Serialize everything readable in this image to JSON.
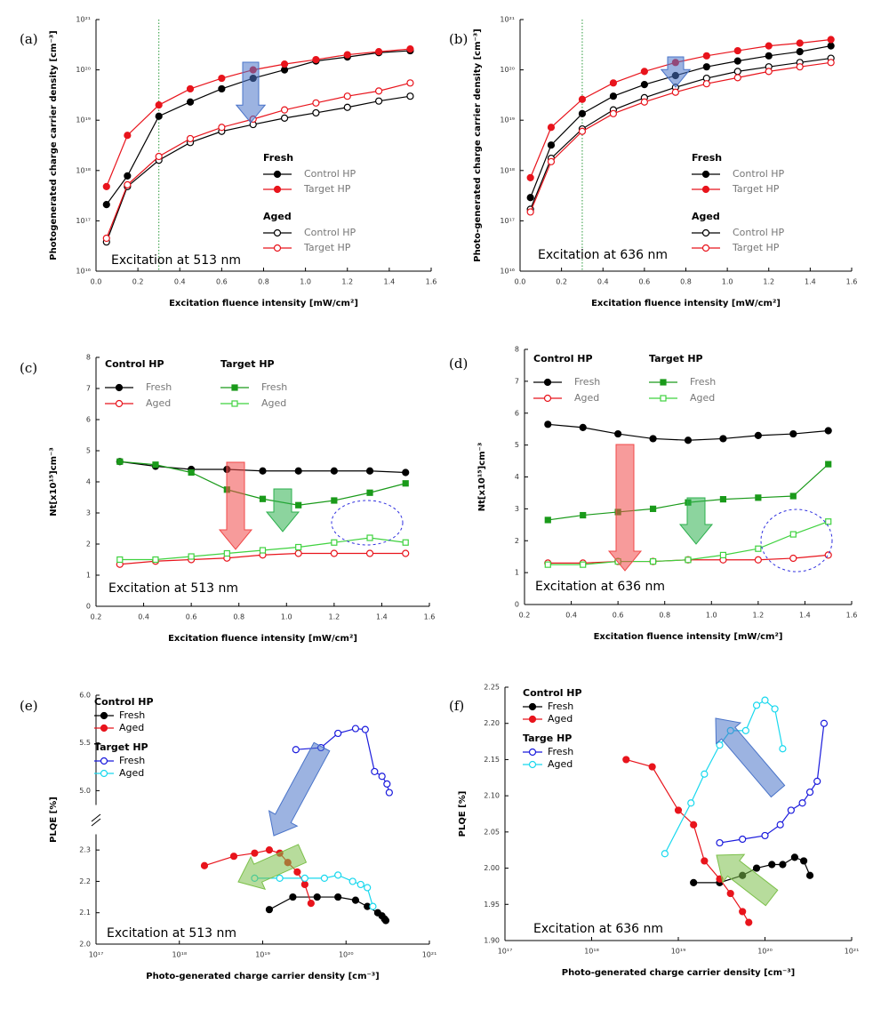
{
  "chart_data": [
    {
      "type": "line",
      "panel_label": "(a)",
      "xlabel": "Excitation fluence intensity [mW/cm²]",
      "ylabel": "Photogenerated charge carrier density [cm⁻³]",
      "annotation": "Excitation at 513 nm",
      "ylog": true,
      "xlim": [
        0,
        1.6
      ],
      "xticks": [
        {
          "value": 0,
          "label": "0.0"
        },
        0.2,
        0.4,
        0.6,
        0.8,
        {
          "value": 1,
          "label": "1.0"
        },
        1.2,
        1.4,
        1.6
      ],
      "ylim": [
        1e+16,
        1e+21
      ],
      "yticks": [
        {
          "value": 1e+16,
          "label": "10¹⁶"
        },
        {
          "value": 1e+17,
          "label": "10¹⁷"
        },
        {
          "value": 1e+18,
          "label": "10¹⁸"
        },
        {
          "value": 1e+19,
          "label": "10¹⁹"
        },
        {
          "value": 1e+20,
          "label": "10²⁰"
        },
        {
          "value": 1e+21,
          "label": "10²¹"
        }
      ],
      "vline": 0.3,
      "x": [
        0.05,
        0.15,
        0.3,
        0.45,
        0.6,
        0.75,
        0.9,
        1.05,
        1.2,
        1.35,
        1.5
      ],
      "series": [
        {
          "group": "Fresh",
          "name": "Control HP",
          "color": "#000000",
          "marker": "circle",
          "filled": true,
          "values": [
            2.1e+17,
            7.8e+17,
            1.2e+19,
            2.3e+19,
            4.2e+19,
            6.8e+19,
            1e+20,
            1.5e+20,
            1.8e+20,
            2.2e+20,
            2.4e+20
          ]
        },
        {
          "group": "Fresh",
          "name": "Target HP",
          "color": "#e8141c",
          "marker": "circle",
          "filled": true,
          "values": [
            4.8e+17,
            5e+18,
            2e+19,
            4.2e+19,
            6.8e+19,
            1e+20,
            1.3e+20,
            1.6e+20,
            2e+20,
            2.3e+20,
            2.6e+20
          ]
        },
        {
          "group": "Aged",
          "name": "Control HP",
          "color": "#000000",
          "marker": "circle",
          "filled": false,
          "values": [
            3.8e+16,
            4.8e+17,
            1.6e+18,
            3.6e+18,
            6e+18,
            8.2e+18,
            1.1e+19,
            1.4e+19,
            1.8e+19,
            2.4e+19,
            3e+19
          ]
        },
        {
          "group": "Aged",
          "name": "Target HP",
          "color": "#e8141c",
          "marker": "circle",
          "filled": false,
          "values": [
            4.5e+16,
            5.2e+17,
            1.9e+18,
            4.3e+18,
            7.2e+18,
            1.05e+19,
            1.6e+19,
            2.2e+19,
            3e+19,
            3.8e+19,
            5.5e+19
          ]
        }
      ]
    },
    {
      "type": "line",
      "panel_label": "(b)",
      "xlabel": "Excitation fluence intensity [mW/cm²]",
      "ylabel": "Photo-generated charge carrier density [cm⁻³]",
      "annotation": "Excitation at 636 nm",
      "ylog": true,
      "xlim": [
        0,
        1.6
      ],
      "xticks": [
        {
          "value": 0,
          "label": "0.0"
        },
        0.2,
        0.4,
        0.6,
        0.8,
        {
          "value": 1,
          "label": "1.0"
        },
        1.2,
        1.4,
        1.6
      ],
      "ylim": [
        1e+16,
        1e+21
      ],
      "yticks": [
        {
          "value": 1e+16,
          "label": "10¹⁶"
        },
        {
          "value": 1e+17,
          "label": "10¹⁷"
        },
        {
          "value": 1e+18,
          "label": "10¹⁸"
        },
        {
          "value": 1e+19,
          "label": "10¹⁹"
        },
        {
          "value": 1e+20,
          "label": "10²⁰"
        },
        {
          "value": 1e+21,
          "label": "10²¹"
        }
      ],
      "vline": 0.3,
      "x": [
        0.05,
        0.15,
        0.3,
        0.45,
        0.6,
        0.75,
        0.9,
        1.05,
        1.2,
        1.35,
        1.5
      ],
      "series": [
        {
          "group": "Fresh",
          "name": "Control HP",
          "color": "#000000",
          "marker": "circle",
          "filled": true,
          "values": [
            2.9e+17,
            3.2e+18,
            1.35e+19,
            3e+19,
            5.1e+19,
            7.7e+19,
            1.15e+20,
            1.5e+20,
            1.9e+20,
            2.3e+20,
            3e+20
          ]
        },
        {
          "group": "Fresh",
          "name": "Target HP",
          "color": "#e8141c",
          "marker": "circle",
          "filled": true,
          "values": [
            7.2e+17,
            7.2e+18,
            2.6e+19,
            5.5e+19,
            9.3e+19,
            1.4e+20,
            1.9e+20,
            2.4e+20,
            3e+20,
            3.4e+20,
            4e+20
          ]
        },
        {
          "group": "Aged",
          "name": "Control HP",
          "color": "#000000",
          "marker": "circle",
          "filled": false,
          "values": [
            1.7e+17,
            1.75e+18,
            6.7e+18,
            1.6e+19,
            2.8e+19,
            4.5e+19,
            6.8e+19,
            9.3e+19,
            1.15e+20,
            1.4e+20,
            1.7e+20
          ]
        },
        {
          "group": "Aged",
          "name": "Target HP",
          "color": "#e8141c",
          "marker": "circle",
          "filled": false,
          "values": [
            1.5e+17,
            1.5e+18,
            6e+18,
            1.35e+19,
            2.3e+19,
            3.6e+19,
            5.3e+19,
            7e+19,
            9.3e+19,
            1.15e+20,
            1.4e+20
          ]
        }
      ]
    },
    {
      "type": "line",
      "panel_label": "(c)",
      "xlabel": "Excitation fluence intensity [mW/cm²]",
      "ylabel": "Nt[x10¹⁵]cm⁻³",
      "annotation": "Excitation at 513 nm",
      "xlim": [
        0.2,
        1.6
      ],
      "xticks": [
        0.2,
        0.4,
        0.6,
        0.8,
        {
          "value": 1,
          "label": "1.0"
        },
        1.2,
        1.4,
        1.6
      ],
      "ylim": [
        0,
        8
      ],
      "yticks": [
        0,
        1,
        2,
        3,
        4,
        5,
        6,
        7,
        8
      ],
      "x": [
        0.3,
        0.45,
        0.6,
        0.75,
        0.9,
        1.05,
        1.2,
        1.35,
        1.5
      ],
      "series": [
        {
          "group": "Control HP",
          "name": "Fresh",
          "color": "#000000",
          "marker": "circle",
          "filled": true,
          "values": [
            4.65,
            4.5,
            4.4,
            4.4,
            4.35,
            4.35,
            4.35,
            4.35,
            4.3
          ]
        },
        {
          "group": "Control HP",
          "name": "Aged",
          "color": "#e8141c",
          "marker": "circle",
          "filled": false,
          "values": [
            1.35,
            1.45,
            1.5,
            1.55,
            1.65,
            1.7,
            1.7,
            1.7,
            1.7
          ]
        },
        {
          "group": "Target HP",
          "name": "Fresh",
          "color": "#1a9a1a",
          "marker": "square",
          "filled": true,
          "values": [
            4.65,
            4.55,
            4.3,
            3.75,
            3.45,
            3.25,
            3.4,
            3.65,
            3.95
          ]
        },
        {
          "group": "Target HP",
          "name": "Aged",
          "color": "#3fd23f",
          "marker": "square",
          "filled": false,
          "values": [
            1.5,
            1.5,
            1.6,
            1.7,
            1.8,
            1.9,
            2.05,
            2.2,
            2.05
          ]
        }
      ]
    },
    {
      "type": "line",
      "panel_label": "(d)",
      "xlabel": "Excitation fluence intensity [mW/cm²]",
      "ylabel": "Nt[x10¹⁵]cm⁻³",
      "annotation": "Excitation at 636 nm",
      "xlim": [
        0.2,
        1.6
      ],
      "xticks": [
        0.2,
        0.4,
        0.6,
        0.8,
        {
          "value": 1,
          "label": "1.0"
        },
        1.2,
        1.4,
        1.6
      ],
      "ylim": [
        0,
        8
      ],
      "yticks": [
        0,
        1,
        2,
        3,
        4,
        5,
        6,
        7,
        8
      ],
      "x": [
        0.3,
        0.45,
        0.6,
        0.75,
        0.9,
        1.05,
        1.2,
        1.35,
        1.5
      ],
      "series": [
        {
          "group": "Control HP",
          "name": "Fresh",
          "color": "#000000",
          "marker": "circle",
          "filled": true,
          "values": [
            5.65,
            5.55,
            5.35,
            5.2,
            5.15,
            5.2,
            5.3,
            5.35,
            5.45
          ]
        },
        {
          "group": "Control HP",
          "name": "Aged",
          "color": "#e8141c",
          "marker": "circle",
          "filled": false,
          "values": [
            1.3,
            1.3,
            1.35,
            1.35,
            1.4,
            1.4,
            1.4,
            1.45,
            1.55
          ]
        },
        {
          "group": "Target HP",
          "name": "Fresh",
          "color": "#1a9a1a",
          "marker": "square",
          "filled": true,
          "values": [
            2.65,
            2.8,
            2.9,
            3.0,
            3.2,
            3.3,
            3.35,
            3.4,
            4.4
          ]
        },
        {
          "group": "Target HP",
          "name": "Aged",
          "color": "#3fd23f",
          "marker": "square",
          "filled": false,
          "values": [
            1.25,
            1.25,
            1.35,
            1.35,
            1.4,
            1.55,
            1.75,
            2.2,
            2.6
          ]
        }
      ]
    },
    {
      "type": "scatter",
      "panel_label": "(e)",
      "xlabel": "Photo-generated charge carrier density [cm⁻³]",
      "ylabel": "PLQE [%]",
      "annotation": "Excitation at 513 nm",
      "xlog": true,
      "xlim": [
        1e+17,
        1e+21
      ],
      "xticks": [
        {
          "value": 1e+17,
          "label": "10¹⁷"
        },
        {
          "value": 1e+18,
          "label": "10¹⁸"
        },
        {
          "value": 1e+19,
          "label": "10¹⁹"
        },
        {
          "value": 1e+20,
          "label": "10²⁰"
        },
        {
          "value": 1e+21,
          "label": "10²¹"
        }
      ],
      "ylim": [
        2.0,
        6.0
      ],
      "y_break": [
        2.35,
        4.85
      ],
      "yticks": [
        {
          "value": 2,
          "label": "2.0"
        },
        2.1,
        2.2,
        2.3,
        {
          "value": 5,
          "label": "5.0"
        },
        5.5,
        {
          "value": 6,
          "label": "6.0"
        }
      ],
      "series": [
        {
          "group": "Control HP",
          "name": "Fresh",
          "color": "#000000",
          "marker": "circle",
          "filled": true,
          "x": [
            1.2e+19,
            2.3e+19,
            4.5e+19,
            8e+19,
            1.3e+20,
            1.8e+20,
            2.4e+20,
            2.7e+20,
            2.9e+20,
            3e+20
          ],
          "values": [
            2.11,
            2.15,
            2.15,
            2.15,
            2.14,
            2.12,
            2.1,
            2.09,
            2.08,
            2.075
          ]
        },
        {
          "group": "Control HP",
          "name": "Aged",
          "color": "#e8141c",
          "marker": "circle",
          "filled": true,
          "x": [
            2e+18,
            4.5e+18,
            8e+18,
            1.2e+19,
            1.6e+19,
            2e+19,
            2.6e+19,
            3.2e+19,
            3.8e+19
          ],
          "values": [
            2.25,
            2.28,
            2.29,
            2.3,
            2.29,
            2.26,
            2.23,
            2.19,
            2.13
          ]
        },
        {
          "group": "Target HP",
          "name": "Fresh",
          "color": "#1a1adc",
          "marker": "circle",
          "filled": false,
          "x": [
            2.5e+19,
            5e+19,
            8e+19,
            1.3e+20,
            1.7e+20,
            2.2e+20,
            2.7e+20,
            3.1e+20,
            3.3e+20
          ],
          "values": [
            5.43,
            5.45,
            5.6,
            5.65,
            5.64,
            5.2,
            5.15,
            5.07,
            4.98
          ]
        },
        {
          "group": "Target HP",
          "name": "Aged",
          "color": "#19d8ee",
          "marker": "circle",
          "filled": false,
          "x": [
            8e+18,
            1.6e+19,
            3.2e+19,
            5.5e+19,
            8e+19,
            1.2e+20,
            1.5e+20,
            1.8e+20,
            2.1e+20
          ],
          "values": [
            2.21,
            2.21,
            2.21,
            2.21,
            2.22,
            2.2,
            2.19,
            2.18,
            2.12
          ]
        }
      ]
    },
    {
      "type": "scatter",
      "panel_label": "(f)",
      "xlabel": "Photo-generated charge carrier density [cm⁻³]",
      "ylabel": "PLQE [%]",
      "annotation": "Excitation at 636 nm",
      "xlog": true,
      "xlim": [
        1e+17,
        1e+21
      ],
      "xticks": [
        {
          "value": 1e+17,
          "label": "10¹⁷"
        },
        {
          "value": 1e+18,
          "label": "10¹⁸"
        },
        {
          "value": 1e+19,
          "label": "10¹⁹"
        },
        {
          "value": 1e+20,
          "label": "10²⁰"
        },
        {
          "value": 1e+21,
          "label": "10²¹"
        }
      ],
      "ylim": [
        1.9,
        2.25
      ],
      "yticks": [
        {
          "value": 1.9,
          "label": "1.90"
        },
        1.95,
        {
          "value": 2,
          "label": "2.00"
        },
        2.05,
        {
          "value": 2.1,
          "label": "2.10"
        },
        2.15,
        {
          "value": 2.2,
          "label": "2.20"
        },
        2.25
      ],
      "series": [
        {
          "group": "Control HP",
          "name": "Fresh",
          "color": "#000000",
          "marker": "circle",
          "filled": true,
          "x": [
            1.5e+19,
            3e+19,
            5.5e+19,
            8e+19,
            1.2e+20,
            1.6e+20,
            2.2e+20,
            2.8e+20,
            3.3e+20
          ],
          "values": [
            1.98,
            1.98,
            1.99,
            2.0,
            2.005,
            2.005,
            2.015,
            2.01,
            1.99
          ]
        },
        {
          "group": "Control HP",
          "name": "Aged",
          "color": "#e8141c",
          "marker": "circle",
          "filled": true,
          "x": [
            2.5e+18,
            5e+18,
            1e+19,
            1.5e+19,
            2e+19,
            3e+19,
            4e+19,
            5.5e+19,
            6.5e+19
          ],
          "values": [
            2.15,
            2.14,
            2.08,
            2.06,
            2.01,
            1.985,
            1.965,
            1.94,
            1.925
          ]
        },
        {
          "group": "Targe HP",
          "name": "Fresh",
          "color": "#1a1adc",
          "marker": "circle",
          "filled": false,
          "x": [
            3e+19,
            5.5e+19,
            1e+20,
            1.5e+20,
            2e+20,
            2.7e+20,
            3.3e+20,
            4e+20,
            4.8e+20
          ],
          "values": [
            2.035,
            2.04,
            2.045,
            2.06,
            2.08,
            2.09,
            2.105,
            2.12,
            2.2
          ]
        },
        {
          "group": "Targe HP",
          "name": "Aged",
          "color": "#19d8ee",
          "marker": "circle",
          "filled": false,
          "x": [
            7e+18,
            1.4e+19,
            2e+19,
            3e+19,
            4e+19,
            6e+19,
            8e+19,
            1e+20,
            1.3e+20,
            1.6e+20
          ],
          "values": [
            2.02,
            2.09,
            2.13,
            2.17,
            2.19,
            2.19,
            2.225,
            2.232,
            2.22,
            2.165
          ]
        }
      ]
    }
  ]
}
